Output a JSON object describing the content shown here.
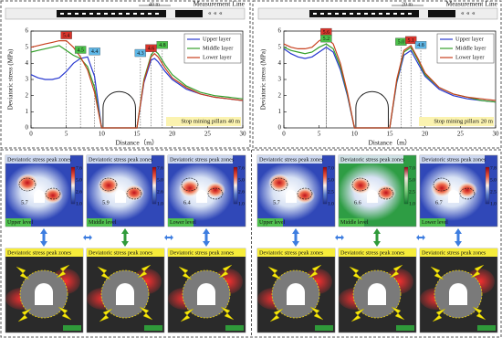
{
  "chart_data": [
    {
      "type": "line",
      "header_label": "Measurement Line",
      "pillar_label": "40 m",
      "xlabel": "Distance（m）",
      "ylabel": "Deviatoric stress (MPa)",
      "x": [
        0,
        1,
        2,
        3,
        4,
        5,
        6,
        7,
        8,
        9,
        10,
        15,
        16,
        17,
        17.5,
        18,
        19,
        20,
        22,
        24,
        26,
        28,
        30
      ],
      "series": [
        {
          "name": "Upper layer",
          "color": "#2838d0",
          "values": [
            3.3,
            3.1,
            3.0,
            3.0,
            3.1,
            3.5,
            4.0,
            4.3,
            4.4,
            3.2,
            0,
            0,
            2.8,
            4.2,
            4.3,
            4.1,
            3.5,
            3.0,
            2.4,
            2.1,
            1.9,
            1.8,
            1.7
          ]
        },
        {
          "name": "Middle layer",
          "color": "#35a02c",
          "values": [
            4.7,
            4.8,
            4.9,
            5.0,
            5.1,
            4.8,
            4.5,
            4.3,
            3.8,
            2.5,
            0,
            0,
            3.0,
            4.5,
            4.8,
            4.6,
            3.9,
            3.3,
            2.6,
            2.2,
            2.0,
            1.9,
            1.8
          ]
        },
        {
          "name": "Lower layer",
          "color": "#c8401e",
          "values": [
            5.0,
            5.1,
            5.2,
            5.3,
            5.4,
            5.4,
            5.0,
            4.4,
            3.6,
            2.2,
            0,
            0,
            2.9,
            4.4,
            4.6,
            4.4,
            3.7,
            3.1,
            2.5,
            2.1,
            1.9,
            1.8,
            1.7
          ]
        }
      ],
      "xlim": [
        0,
        30
      ],
      "ylim": [
        0,
        6
      ],
      "xticks": [
        0,
        5,
        10,
        15,
        20,
        25,
        30
      ],
      "yticks": [
        0,
        1,
        2,
        3,
        4,
        5,
        6
      ],
      "legend": "upper right",
      "annotation": "Stop mining pillars 40 m",
      "peaks": [
        {
          "x": 5,
          "value": 5.4,
          "label": "5.4",
          "color": "#d9342b"
        },
        {
          "x": 7,
          "value": 4.5,
          "label": "4.5",
          "color": "#4cc24a"
        },
        {
          "x": 9,
          "value": 4.4,
          "label": "4.4",
          "color": "#5fb8e8"
        },
        {
          "x": 15.5,
          "value": 4.3,
          "label": "4.3",
          "color": "#5fb8e8"
        },
        {
          "x": 17,
          "value": 4.6,
          "label": "4.6",
          "color": "#d9342b"
        },
        {
          "x": 18.6,
          "value": 4.8,
          "label": "4.8",
          "color": "#4cc24a"
        }
      ]
    },
    {
      "type": "line",
      "header_label": "Measurement Line",
      "pillar_label": "20 m",
      "xlabel": "Distance（m）",
      "ylabel": "Deviatoric stress (MPa)",
      "x": [
        0,
        1,
        2,
        3,
        4,
        5,
        6,
        7,
        8,
        9,
        10,
        15,
        16,
        17,
        18,
        19,
        20,
        22,
        24,
        26,
        28,
        30
      ],
      "series": [
        {
          "name": "Upper layer",
          "color": "#2838d0",
          "values": [
            4.9,
            4.6,
            4.4,
            4.3,
            4.4,
            4.7,
            5.0,
            4.7,
            3.6,
            2.0,
            0,
            0,
            2.8,
            4.5,
            4.8,
            4.0,
            3.2,
            2.4,
            2.0,
            1.8,
            1.7,
            1.6
          ]
        },
        {
          "name": "Middle layer",
          "color": "#35a02c",
          "values": [
            5.0,
            4.8,
            4.7,
            4.6,
            4.7,
            5.0,
            5.2,
            4.9,
            3.8,
            2.1,
            0,
            0,
            2.9,
            4.7,
            5.0,
            4.2,
            3.3,
            2.5,
            2.1,
            1.9,
            1.7,
            1.6
          ]
        },
        {
          "name": "Lower layer",
          "color": "#c8401e",
          "values": [
            5.2,
            5.0,
            4.9,
            4.9,
            5.0,
            5.4,
            5.6,
            5.2,
            4.0,
            2.2,
            0,
            0,
            3.0,
            4.8,
            5.1,
            4.3,
            3.4,
            2.5,
            2.1,
            1.9,
            1.8,
            1.7
          ]
        }
      ],
      "xlim": [
        0,
        30
      ],
      "ylim": [
        0,
        6
      ],
      "xticks": [
        0,
        5,
        10,
        15,
        20,
        25,
        30
      ],
      "yticks": [
        0,
        1,
        2,
        3,
        4,
        5,
        6
      ],
      "legend": "upper right",
      "annotation": "Stop mining pillars 20 m",
      "peaks": [
        {
          "x": 6,
          "value": 5.6,
          "label": "5.6",
          "color": "#d9342b"
        },
        {
          "x": 6,
          "value": 5.2,
          "label": "5.2",
          "color": "#4cc24a"
        },
        {
          "x": 16.6,
          "value": 5.0,
          "label": "5.0",
          "color": "#4cc24a"
        },
        {
          "x": 18,
          "value": 5.1,
          "label": "5.1",
          "color": "#d9342b"
        },
        {
          "x": 19.4,
          "value": 4.8,
          "label": "4.8",
          "color": "#5fb8e8"
        }
      ]
    }
  ],
  "panels": {
    "contour": [
      {
        "title": "Deviatoric stress peak zones",
        "level": "Upper level",
        "value": "5.7",
        "colorbar": [
          "7.6",
          "5.0",
          "2.6",
          "1.0"
        ]
      },
      {
        "title": "Deviatoric stress peak zones",
        "level": "Middle level",
        "value": "5.9",
        "colorbar": [
          "7.6",
          "5.0",
          "2.6",
          "1.0"
        ]
      },
      {
        "title": "Deviatoric stress peak zones",
        "level": "Lower level",
        "value": "6.4",
        "colorbar": [
          "7.6",
          "5.0",
          "2.6",
          "1.0"
        ]
      },
      {
        "title": "Deviatoric stress peak zones",
        "level": "Upper level",
        "value": "5.7",
        "colorbar": [
          "7.0",
          "5.0",
          "2.5",
          "1.0"
        ]
      },
      {
        "title": "Deviatoric stress peak zones",
        "level": "Middle level",
        "value": "6.6",
        "colorbar": [
          "7.0",
          "5.0",
          "2.5",
          "1.0"
        ]
      },
      {
        "title": "Deviatoric stress peak zones",
        "level": "Lower level",
        "value": "6.7",
        "colorbar": [
          "7.8",
          "5.0",
          "2.5",
          "1.0"
        ]
      }
    ],
    "photo": [
      {
        "title": "Deviatoric stress peak zones"
      },
      {
        "title": "Deviatoric stress peak zones"
      },
      {
        "title": "Deviatoric stress peak zones"
      },
      {
        "title": "Deviatoric stress peak zones"
      },
      {
        "title": "Deviatoric stress peak zones"
      },
      {
        "title": "Deviatoric stress peak zones"
      }
    ]
  }
}
